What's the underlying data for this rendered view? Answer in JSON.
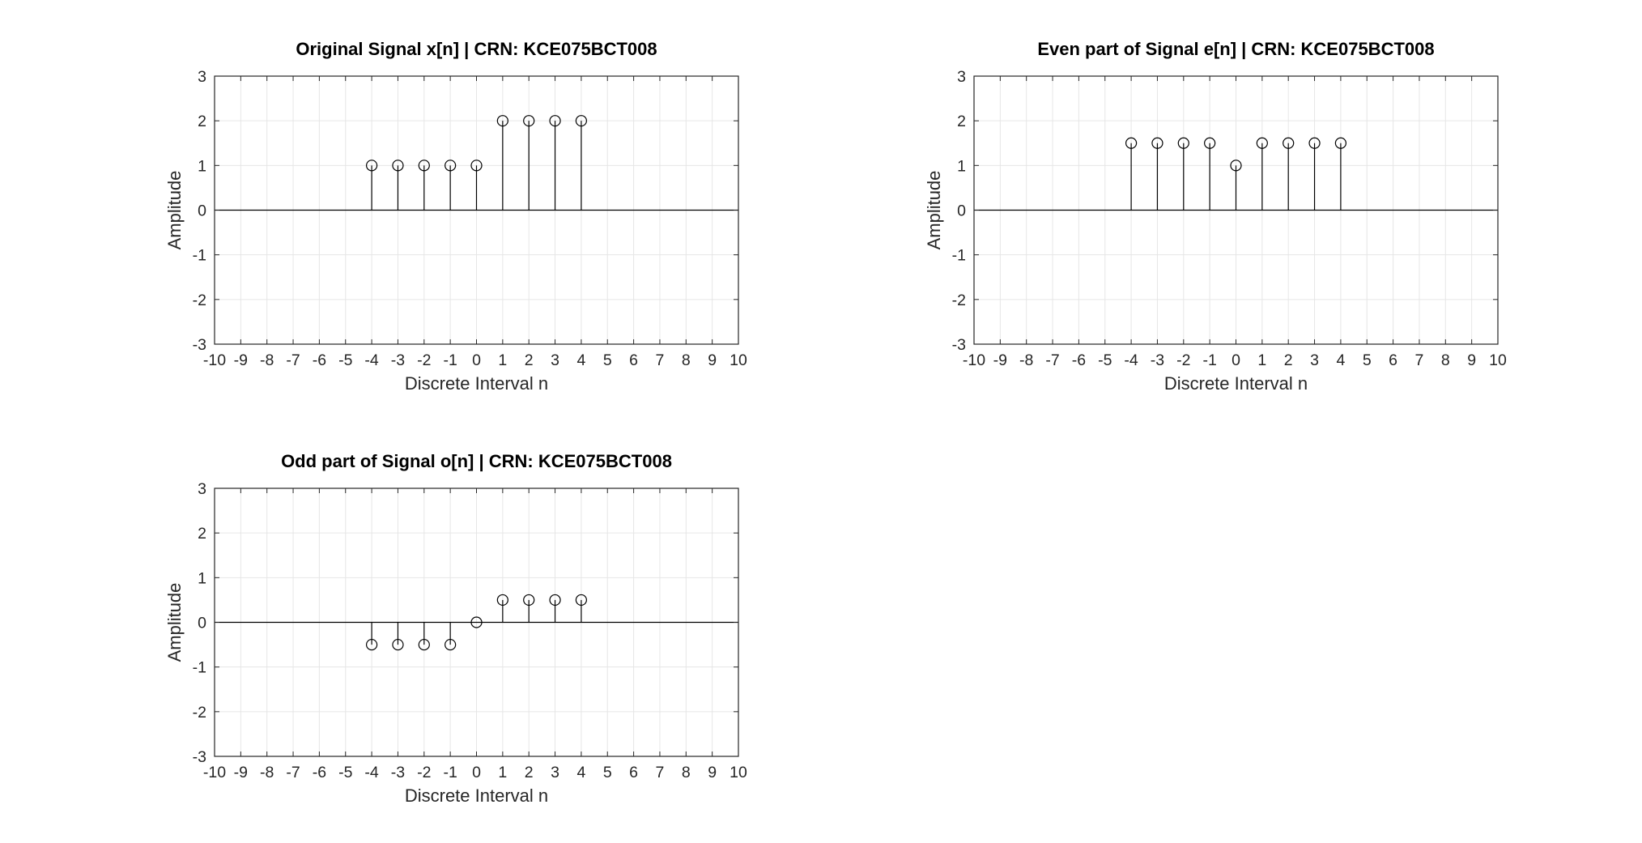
{
  "chart_data": [
    {
      "type": "stem",
      "title": "Original Signal x[n] | CRN: KCE075BCT008",
      "xlabel": "Discrete Interval n",
      "ylabel": "Amplitude",
      "xlim": [
        -10,
        10
      ],
      "ylim": [
        -3,
        3
      ],
      "xticks": [
        -10,
        -9,
        -8,
        -7,
        -6,
        -5,
        -4,
        -3,
        -2,
        -1,
        0,
        1,
        2,
        3,
        4,
        5,
        6,
        7,
        8,
        9,
        10
      ],
      "yticks": [
        -3,
        -2,
        -1,
        0,
        1,
        2,
        3
      ],
      "grid": true,
      "x": [
        -4,
        -3,
        -2,
        -1,
        0,
        1,
        2,
        3,
        4
      ],
      "y": [
        1,
        1,
        1,
        1,
        1,
        2,
        2,
        2,
        2
      ]
    },
    {
      "type": "stem",
      "title": "Even part of Signal e[n] | CRN: KCE075BCT008",
      "xlabel": "Discrete Interval n",
      "ylabel": "Amplitude",
      "xlim": [
        -10,
        10
      ],
      "ylim": [
        -3,
        3
      ],
      "xticks": [
        -10,
        -9,
        -8,
        -7,
        -6,
        -5,
        -4,
        -3,
        -2,
        -1,
        0,
        1,
        2,
        3,
        4,
        5,
        6,
        7,
        8,
        9,
        10
      ],
      "yticks": [
        -3,
        -2,
        -1,
        0,
        1,
        2,
        3
      ],
      "grid": true,
      "x": [
        -4,
        -3,
        -2,
        -1,
        0,
        1,
        2,
        3,
        4
      ],
      "y": [
        1.5,
        1.5,
        1.5,
        1.5,
        1,
        1.5,
        1.5,
        1.5,
        1.5
      ]
    },
    {
      "type": "stem",
      "title": "Odd part of Signal o[n] | CRN: KCE075BCT008",
      "xlabel": "Discrete Interval n",
      "ylabel": "Amplitude",
      "xlim": [
        -10,
        10
      ],
      "ylim": [
        -3,
        3
      ],
      "xticks": [
        -10,
        -9,
        -8,
        -7,
        -6,
        -5,
        -4,
        -3,
        -2,
        -1,
        0,
        1,
        2,
        3,
        4,
        5,
        6,
        7,
        8,
        9,
        10
      ],
      "yticks": [
        -3,
        -2,
        -1,
        0,
        1,
        2,
        3
      ],
      "grid": true,
      "x": [
        -4,
        -3,
        -2,
        -1,
        0,
        1,
        2,
        3,
        4
      ],
      "y": [
        -0.5,
        -0.5,
        -0.5,
        -0.5,
        0,
        0.5,
        0.5,
        0.5,
        0.5
      ]
    }
  ],
  "style": {
    "background": "#ffffff",
    "axes_color": "#262626",
    "grid_color": "#e6e6e6",
    "stem_color": "#000000"
  }
}
